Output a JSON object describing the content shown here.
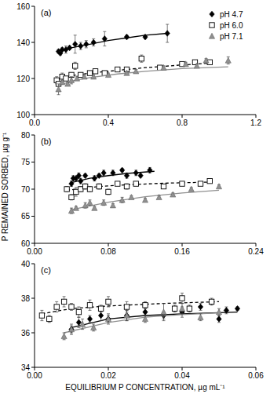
{
  "chart_data": [
    {
      "type": "scatter",
      "title": "(a)",
      "legend": "top-right",
      "grid": false,
      "xlim": [
        0,
        1.2
      ],
      "xticks": [
        {
          "value": 0,
          "label": "0.0"
        },
        0.4,
        0.8,
        1.2
      ],
      "ylim": [
        100,
        160
      ],
      "yticks": [
        100,
        120,
        140,
        160
      ],
      "series": [
        {
          "name": "pH 4.7",
          "color": "#000000",
          "marker": "diamond",
          "line_style": "solid",
          "x": [
            0.13,
            0.14,
            0.15,
            0.17,
            0.19,
            0.22,
            0.25,
            0.28,
            0.32,
            0.38,
            0.5,
            0.6,
            0.72
          ],
          "values": [
            135,
            134,
            136,
            136,
            137,
            139,
            138,
            139,
            140,
            142,
            143,
            143,
            145
          ],
          "errors": [
            1,
            1,
            1,
            2,
            1,
            5,
            2,
            2,
            2,
            4,
            1,
            1,
            5
          ],
          "fit": {
            "x": [
              0.12,
              0.2,
              0.3,
              0.4,
              0.5,
              0.6,
              0.72
            ],
            "values": [
              134.5,
              137,
              139,
              141,
              142.5,
              144,
              145
            ]
          }
        },
        {
          "name": "pH 6.0",
          "color": "#000000",
          "marker": "open-square",
          "line_style": "dashed",
          "x": [
            0.12,
            0.13,
            0.15,
            0.17,
            0.2,
            0.22,
            0.25,
            0.3,
            0.33,
            0.38,
            0.45,
            0.5,
            0.58,
            0.68,
            0.8,
            0.87,
            0.95
          ],
          "values": [
            119,
            117,
            121,
            120,
            122,
            127,
            122,
            123,
            124,
            123,
            125,
            125,
            131,
            126,
            128,
            129,
            129
          ],
          "errors": [
            2,
            1,
            2,
            1,
            1,
            2,
            1,
            1,
            1,
            1,
            1,
            1,
            2,
            1,
            1,
            1,
            1
          ],
          "fit": {
            "x": [
              0.12,
              0.2,
              0.3,
              0.45,
              0.6,
              0.8,
              0.95
            ],
            "values": [
              119.5,
              121.5,
              123,
              124.5,
              126,
              127.5,
              128.5
            ]
          }
        },
        {
          "name": "pH 7.1",
          "color": "#909090",
          "marker": "triangle",
          "line_style": "solid",
          "x": [
            0.13,
            0.15,
            0.18,
            0.2,
            0.23,
            0.27,
            0.32,
            0.4,
            0.5,
            0.55,
            0.7,
            0.82,
            0.88,
            0.93,
            1.05
          ],
          "values": [
            114,
            118,
            117,
            119,
            120,
            121,
            121,
            122,
            123,
            124,
            126,
            128,
            127,
            130,
            130
          ],
          "errors": [
            3,
            1,
            1,
            2,
            1,
            1,
            1,
            1,
            1,
            1,
            1,
            1,
            1,
            1,
            2
          ],
          "fit": {
            "x": [
              0.13,
              0.2,
              0.3,
              0.45,
              0.6,
              0.8,
              1.05
            ],
            "values": [
              116,
              118.5,
              120.5,
              122.5,
              124,
              125.5,
              126.5
            ]
          }
        }
      ]
    },
    {
      "type": "scatter",
      "title": "(b)",
      "y_label": "P REMAINED SORBED, µg g⁻¹",
      "grid": false,
      "xlim": [
        0,
        0.24
      ],
      "xticks": [
        {
          "value": 0,
          "label": "0.00"
        },
        0.08,
        0.16,
        0.24
      ],
      "ylim": [
        60,
        80
      ],
      "yticks": [
        60,
        65,
        70,
        75,
        80
      ],
      "series": [
        {
          "color": "#000000",
          "marker": "diamond",
          "line_style": "solid",
          "x": [
            0.04,
            0.042,
            0.045,
            0.048,
            0.05,
            0.055,
            0.065,
            0.07,
            0.075,
            0.085,
            0.095,
            0.1,
            0.11,
            0.115,
            0.125
          ],
          "values": [
            71,
            72,
            72,
            72.5,
            71.5,
            72.5,
            72,
            72.5,
            73,
            73,
            73.5,
            72.5,
            73,
            72.5,
            73.5
          ],
          "errors": [
            0.5,
            0.5,
            0.3,
            0.5,
            0.5,
            0.3,
            0.5,
            0.3,
            0.5,
            0.5,
            0.3,
            0.5,
            0.5,
            0.3,
            0.5
          ],
          "fit": {
            "x": [
              0.04,
              0.06,
              0.08,
              0.1,
              0.13
            ],
            "values": [
              71.2,
              72,
              72.5,
              72.9,
              73.3
            ]
          }
        },
        {
          "color": "#000000",
          "marker": "open-square",
          "line_style": "dashed",
          "x": [
            0.035,
            0.04,
            0.045,
            0.05,
            0.055,
            0.06,
            0.07,
            0.08,
            0.09,
            0.1,
            0.11,
            0.14,
            0.16,
            0.18,
            0.19
          ],
          "values": [
            70,
            68.5,
            69.5,
            70,
            70.5,
            70,
            70.5,
            69.5,
            71,
            70.5,
            71,
            70.5,
            71,
            71,
            71.5
          ],
          "errors": [
            0.5,
            0.5,
            0.8,
            0.5,
            0.5,
            0.5,
            0.5,
            0.5,
            0.3,
            0.5,
            0.3,
            0.3,
            0.3,
            0.3,
            0.3
          ],
          "fit": {
            "x": [
              0.035,
              0.07,
              0.1,
              0.14,
              0.19
            ],
            "values": [
              69.8,
              70.5,
              70.8,
              71.1,
              71.3
            ]
          }
        },
        {
          "color": "#909090",
          "marker": "triangle",
          "line_style": "solid",
          "x": [
            0.04,
            0.045,
            0.055,
            0.06,
            0.065,
            0.075,
            0.085,
            0.095,
            0.105,
            0.12,
            0.135,
            0.15,
            0.17,
            0.2
          ],
          "values": [
            66,
            66.5,
            67,
            67.5,
            66.5,
            67.5,
            67,
            68,
            68.5,
            68,
            68.5,
            69,
            70,
            70.5
          ],
          "errors": [
            0.5,
            0.3,
            0.5,
            0.5,
            0.3,
            0.5,
            0.3,
            0.5,
            0.3,
            0.3,
            0.3,
            0.3,
            0.3,
            0.3
          ],
          "fit": {
            "x": [
              0.04,
              0.08,
              0.12,
              0.16,
              0.2
            ],
            "values": [
              66.2,
              67.6,
              68.6,
              69.3,
              69.8
            ]
          }
        }
      ]
    },
    {
      "type": "scatter",
      "title": "(c)",
      "x_label": "EQUILIBRIUM P CONCENTRATION, µg mL⁻¹",
      "grid": false,
      "xlim": [
        0,
        0.06
      ],
      "xticks": [
        {
          "value": 0,
          "label": "0.00"
        },
        0.02,
        0.04,
        0.06
      ],
      "ylim": [
        34,
        40
      ],
      "yticks": [
        34,
        36,
        38,
        40
      ],
      "series": [
        {
          "color": "#000000",
          "marker": "diamond",
          "line_style": "solid",
          "x": [
            0.01,
            0.012,
            0.015,
            0.018,
            0.02,
            0.025,
            0.03,
            0.035,
            0.04,
            0.045,
            0.05,
            0.052,
            0.055
          ],
          "values": [
            36.2,
            36.6,
            36.8,
            37,
            36.8,
            37,
            37.2,
            37,
            37.2,
            37.5,
            36.8,
            37.3,
            37.4
          ],
          "errors": [
            0.2,
            0.3,
            0.2,
            0.3,
            0.2,
            0.3,
            0.2,
            0.2,
            0.3,
            0.2,
            0.2,
            0.2,
            0.1
          ],
          "fit": {
            "x": [
              0.01,
              0.02,
              0.03,
              0.04,
              0.055
            ],
            "values": [
              36.3,
              36.8,
              37,
              37.1,
              37.2
            ]
          }
        },
        {
          "color": "#000000",
          "marker": "open-square",
          "line_style": "dashed",
          "x": [
            0.002,
            0.004,
            0.006,
            0.008,
            0.01,
            0.012,
            0.015,
            0.018,
            0.02,
            0.025,
            0.03,
            0.038,
            0.04,
            0.042,
            0.048
          ],
          "values": [
            37,
            36.8,
            37.5,
            37.8,
            37.5,
            37.2,
            37.6,
            37.4,
            37.8,
            37.5,
            37.6,
            37.4,
            38,
            37.4,
            37.8
          ],
          "errors": [
            0.3,
            0.2,
            0.3,
            0.3,
            0.2,
            0.3,
            0.3,
            0.2,
            0.3,
            0.3,
            0.2,
            0.2,
            0.3,
            0.2,
            0.2
          ],
          "fit": {
            "x": [
              0.002,
              0.01,
              0.02,
              0.035,
              0.05
            ],
            "values": [
              37.1,
              37.4,
              37.55,
              37.7,
              37.8
            ]
          }
        },
        {
          "color": "#909090",
          "marker": "triangle",
          "line_style": "solid",
          "x": [
            0.008,
            0.01,
            0.013,
            0.016,
            0.02,
            0.025,
            0.03,
            0.035,
            0.04,
            0.045,
            0.05
          ],
          "values": [
            35.8,
            36.2,
            36.5,
            36.3,
            36.8,
            37,
            36.8,
            37.2,
            37.4,
            36.9,
            37.2
          ],
          "errors": [
            0.2,
            0.3,
            0.3,
            0.2,
            0.3,
            0.3,
            0.2,
            0.5,
            0.3,
            0.2,
            0.2
          ],
          "fit": {
            "x": [
              0.008,
              0.02,
              0.03,
              0.04,
              0.05
            ],
            "values": [
              36,
              36.6,
              36.9,
              37.05,
              37.15
            ]
          }
        }
      ]
    }
  ]
}
